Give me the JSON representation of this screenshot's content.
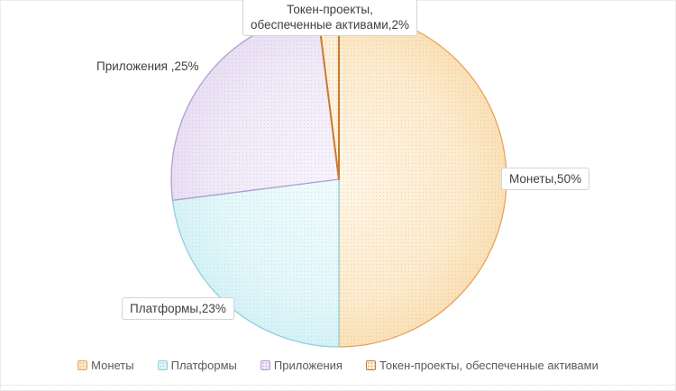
{
  "chart_data": {
    "type": "pie",
    "title": "",
    "categories": [
      "Монеты",
      "Платформы",
      "Приложения",
      "Токен-проекты, обеспеченные активами"
    ],
    "values": [
      50,
      23,
      25,
      2
    ],
    "unit": "%",
    "start_angle_deg": 0,
    "direction": "clockwise",
    "legend_position": "bottom",
    "slice_styles": [
      {
        "inner": "#FEF6E7",
        "mid": "#FCEBCE",
        "outer": "#F9E1B8",
        "stroke": "#EFA159",
        "dot": "#E9AE6E",
        "stroke_width": 1.3
      },
      {
        "inner": "#F2FBFC",
        "mid": "#E3F7FA",
        "outer": "#D6F2F6",
        "stroke": "#8FD0DC",
        "dot": "#9AD4DE",
        "stroke_width": 1.3
      },
      {
        "inner": "#F8F4FC",
        "mid": "#F0EAF8",
        "outer": "#E8DFF3",
        "stroke": "#B29ECC",
        "dot": "#C0A9D6",
        "stroke_width": 1.3
      },
      {
        "inner": "#FEF5E6",
        "mid": "#FDF1DE",
        "outer": "#FBE9CB",
        "stroke": "#C87A2F",
        "dot": "#D79A55",
        "stroke_width": 2
      }
    ]
  },
  "callouts": {
    "token": {
      "line1": "Токен-проекты,",
      "line2": "обеспеченные активами,2%"
    },
    "apps": {
      "text": "Приложения ,25%"
    },
    "coins": {
      "text": "Монеты,50%"
    },
    "platforms": {
      "text": "Платформы,23%"
    }
  },
  "legend": {
    "items": [
      {
        "label": "Монеты"
      },
      {
        "label": "Платформы"
      },
      {
        "label": "Приложения"
      },
      {
        "label": "Токен-проекты, обеспеченные активами"
      }
    ]
  }
}
